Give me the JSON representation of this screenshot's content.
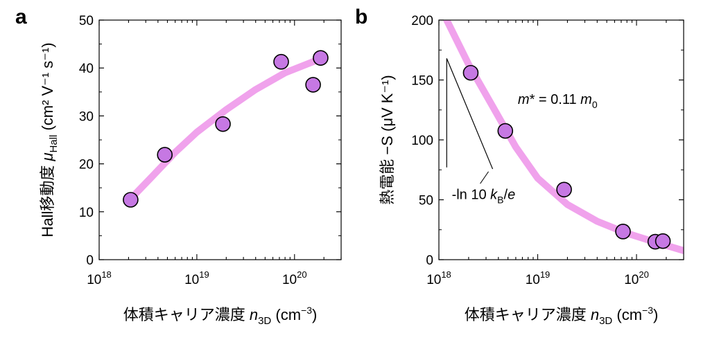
{
  "chart_data": [
    {
      "panel": "a",
      "type": "scatter",
      "x_scale": "log",
      "xlim": [
        1e+18,
        3e+20
      ],
      "ylim": [
        0,
        50
      ],
      "x_ticks": [
        1e+18,
        1e+19,
        1e+20
      ],
      "x_tick_labels": [
        {
          "base": "10",
          "exp": "18"
        },
        {
          "base": "10",
          "exp": "19"
        },
        {
          "base": "10",
          "exp": "20"
        }
      ],
      "y_ticks": [
        0,
        10,
        20,
        30,
        40,
        50
      ],
      "xlabel": {
        "main": "体積キャリア濃度 ",
        "var": "n",
        "sub": "3D",
        "unit_pre": " (cm",
        "unit_sup": "−3",
        "unit_post": ")"
      },
      "ylabel": {
        "main": "Hall移動度 ",
        "var": "μ",
        "sub": "Hall",
        "unit": " (cm² V⁻¹ s⁻¹)"
      },
      "points": [
        {
          "x": 2.1e+18,
          "y": 12.5
        },
        {
          "x": 4.7e+18,
          "y": 21.9
        },
        {
          "x": 1.85e+19,
          "y": 28.3
        },
        {
          "x": 7.3e+19,
          "y": 41.3
        },
        {
          "x": 1.55e+20,
          "y": 36.5
        },
        {
          "x": 1.85e+20,
          "y": 42.1
        }
      ],
      "fit_curve": [
        {
          "x": 2.1e+18,
          "y": 12.7
        },
        {
          "x": 3.5e+18,
          "y": 17.4
        },
        {
          "x": 6e+18,
          "y": 22.4
        },
        {
          "x": 1e+19,
          "y": 26.6
        },
        {
          "x": 2e+19,
          "y": 31.3
        },
        {
          "x": 4e+19,
          "y": 35.5
        },
        {
          "x": 8e+19,
          "y": 39.0
        },
        {
          "x": 1.5e+20,
          "y": 41.2
        },
        {
          "x": 2e+20,
          "y": 42.3
        }
      ],
      "grid": false,
      "colors": {
        "marker_fill": "#c678e3",
        "marker_edge": "#000000",
        "curve": "#f0a2ec"
      }
    },
    {
      "panel": "b",
      "type": "scatter",
      "x_scale": "log",
      "xlim": [
        1e+18,
        3e+20
      ],
      "ylim": [
        0,
        200
      ],
      "x_ticks": [
        1e+18,
        1e+19,
        1e+20
      ],
      "x_tick_labels": [
        {
          "base": "10",
          "exp": "18"
        },
        {
          "base": "10",
          "exp": "19"
        },
        {
          "base": "10",
          "exp": "20"
        }
      ],
      "y_ticks": [
        0,
        50,
        100,
        150,
        200
      ],
      "xlabel": {
        "main": "体積キャリア濃度 ",
        "var": "n",
        "sub": "3D",
        "unit_pre": " (cm",
        "unit_sup": "−3",
        "unit_post": ")"
      },
      "ylabel": {
        "main": "熱電能 −S",
        "unit": " (μV K⁻¹)"
      },
      "points": [
        {
          "x": 2.1e+18,
          "y": 156
        },
        {
          "x": 4.7e+18,
          "y": 107.5
        },
        {
          "x": 1.85e+19,
          "y": 58.5
        },
        {
          "x": 7.3e+19,
          "y": 23.5
        },
        {
          "x": 1.55e+20,
          "y": 15
        },
        {
          "x": 1.85e+20,
          "y": 15.5
        }
      ],
      "fit_curve": [
        {
          "x": 1.2e+18,
          "y": 200
        },
        {
          "x": 2e+18,
          "y": 163
        },
        {
          "x": 3.5e+18,
          "y": 128
        },
        {
          "x": 6e+18,
          "y": 94
        },
        {
          "x": 1e+19,
          "y": 68
        },
        {
          "x": 2e+19,
          "y": 46
        },
        {
          "x": 4e+19,
          "y": 32
        },
        {
          "x": 8e+19,
          "y": 22
        },
        {
          "x": 1.5e+20,
          "y": 15
        },
        {
          "x": 3e+20,
          "y": 7.5
        }
      ],
      "annotation_mass": {
        "m": "m",
        "mid": "* = 0.11 ",
        "m0": "m",
        "m0_sub": "0"
      },
      "annotation_slope": {
        "pre": "-ln 10 ",
        "k": "k",
        "k_sub": "B",
        "post": "/",
        "e": "e"
      },
      "slope_guide": {
        "x_start": 1.2e+18,
        "y_top": 168,
        "y_bottom": 77,
        "x_end": 3.5e+18,
        "label_anchor_x": 2.3e+18,
        "label_anchor_y": 60
      },
      "grid": false,
      "colors": {
        "marker_fill": "#c678e3",
        "marker_edge": "#000000",
        "curve": "#f0a2ec"
      }
    }
  ]
}
